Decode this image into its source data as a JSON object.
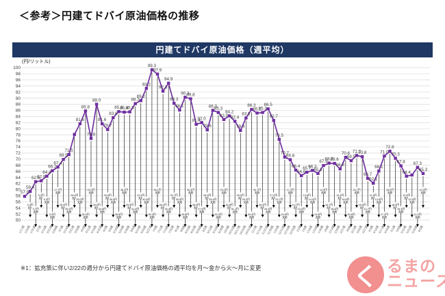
{
  "page": {
    "title": "＜参考＞円建てドバイ原油価格の推移",
    "note": "※1：拡充策に伴い2/22の週分から円建てドバイ原油価格の週平均を月～金から火～月に変更"
  },
  "chart": {
    "header": "円建てドバイ原油価格（週平均）",
    "unit_label": "(円/リットル)"
  },
  "colors": {
    "header_bg": "#1F3864",
    "line": "#7030A0",
    "grid": "#D9D9D9",
    "axis_text": "#595959",
    "value_label": "#3B3B3B",
    "arrow": "#000000",
    "logo_pink": "#F28F8F"
  },
  "chart_data": {
    "type": "line",
    "title": "円建てドバイ原油価格（週平均）",
    "ylabel": "円/リットル",
    "ylim": [
      50,
      100
    ],
    "ytick_step": 2,
    "grid": true,
    "legend": "none",
    "line_color": "#7030A0",
    "marker": "square",
    "categories": [
      "1/17週",
      "1/24週",
      "1/31週",
      "2/7週",
      "2/14週",
      "2/21週",
      "2/28週",
      "3/7週",
      "3/14週",
      "3/21週",
      "3/28週",
      "4/4週",
      "4/11週",
      "4/18週",
      "4/25週",
      "5/2週",
      "5/9週",
      "5/16週",
      "5/23週",
      "5/30週",
      "6/6週",
      "6/13週",
      "6/20週",
      "6/27週",
      "7/4週",
      "7/11週",
      "7/18週",
      "7/25週",
      "8/1週",
      "8/8週",
      "8/15週",
      "8/22週",
      "8/29週",
      "9/5週",
      "9/12週",
      "9/19週",
      "9/26週",
      "10/3週",
      "10/10週",
      "10/17週",
      "10/24週",
      "10/31週",
      "11/7週",
      "11/14週",
      "11/21週",
      "11/28週",
      "12/5週",
      "12/12週",
      "12/19週",
      "12/26週",
      "1/2週",
      "1/9週",
      "1/16週",
      "1/23週",
      "1/30週",
      "2/6週",
      "2/13週",
      "2/20週",
      "2/27週",
      "3/6週",
      "3/13週",
      "3/20週",
      "3/27週",
      "4/3週",
      "4/10週",
      "4/17週",
      "4/24週",
      "5/1週",
      "5/8週",
      "5/15週",
      "5/22週",
      "5/29週",
      "6/5週"
    ],
    "values": [
      57.8,
      59.4,
      62.6,
      62.9,
      64.4,
      66.2,
      67.4,
      69.9,
      71.5,
      78.1,
      81.6,
      85.8,
      76.8,
      88.0,
      81.6,
      79.7,
      83.6,
      85.6,
      85.4,
      85.5,
      88.2,
      89.2,
      93.2,
      99.3,
      97.9,
      92.3,
      94.9,
      88.3,
      86.1,
      90.3,
      89.8,
      81.4,
      82.0,
      79.6,
      86.0,
      85.3,
      83.0,
      84.2,
      82.4,
      79.4,
      83.5,
      86.3,
      85.1,
      85.3,
      86.5,
      82.7,
      76.5,
      70.7,
      69.8,
      66.4,
      64.6,
      65.7,
      66.3,
      65.3,
      67.9,
      68.7,
      68.6,
      66.8,
      70.6,
      69.5,
      71.2,
      70.8,
      63.7,
      62.1,
      66.1,
      71.0,
      72.6,
      70.3,
      67.8,
      64.4,
      64.8,
      67.3,
      65.3
    ],
    "hidden_value_labels": [
      9,
      70
    ],
    "subsidy_arrows": {
      "unit": "円",
      "line2": "支給",
      "values": [
        null,
        3.4,
        3.7,
        5.2,
        5.2,
        5.2,
        17.7,
        25.0,
        25.0,
        25.0,
        25.0,
        25.0,
        25.0,
        25.0,
        34.5,
        33.0,
        35.3,
        36.6,
        38.2,
        39.5,
        41.6,
        41.9,
        40.6,
        39.3,
        38.1,
        36.2,
        34.4,
        31.7,
        30.5,
        29.8,
        30.2,
        28.3,
        27.5,
        26.9,
        28.4,
        29.4,
        29.0,
        30.8,
        31.1,
        30.0,
        29.2,
        30.4,
        30.7,
        30.0,
        29.3,
        27.2,
        23.7,
        19.6,
        17.2,
        14.7,
        13.2,
        13.6,
        14.0,
        13.4,
        14.9,
        15.7,
        15.6,
        14.2,
        16.6,
        15.8,
        16.7,
        16.5,
        12.7,
        11.5,
        13.9,
        17.2,
        18.0,
        16.9,
        15.3,
        12.9,
        12.5,
        12.2,
        10.0
      ]
    }
  },
  "logo": {
    "icon": "く",
    "line1": "るまの",
    "line2": "ニュース"
  }
}
